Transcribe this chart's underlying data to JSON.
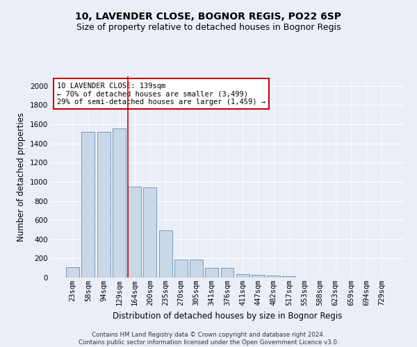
{
  "title1": "10, LAVENDER CLOSE, BOGNOR REGIS, PO22 6SP",
  "title2": "Size of property relative to detached houses in Bognor Regis",
  "xlabel": "Distribution of detached houses by size in Bognor Regis",
  "ylabel": "Number of detached properties",
  "categories": [
    "23sqm",
    "58sqm",
    "94sqm",
    "129sqm",
    "164sqm",
    "200sqm",
    "235sqm",
    "270sqm",
    "305sqm",
    "341sqm",
    "376sqm",
    "411sqm",
    "447sqm",
    "482sqm",
    "517sqm",
    "553sqm",
    "588sqm",
    "623sqm",
    "659sqm",
    "694sqm",
    "729sqm"
  ],
  "values": [
    110,
    1520,
    1520,
    1560,
    950,
    940,
    490,
    185,
    185,
    100,
    100,
    35,
    30,
    20,
    15,
    0,
    0,
    0,
    0,
    0,
    0
  ],
  "bar_color": "#c8d8e8",
  "bar_edge_color": "#7799bb",
  "vline_x": 3.55,
  "vline_color": "#cc0000",
  "annotation_text": "10 LAVENDER CLOSE: 139sqm\n← 70% of detached houses are smaller (3,499)\n29% of semi-detached houses are larger (1,459) →",
  "annotation_box_color": "#ffffff",
  "annotation_box_edge": "#cc0000",
  "ylim": [
    0,
    2100
  ],
  "yticks": [
    0,
    200,
    400,
    600,
    800,
    1000,
    1200,
    1400,
    1600,
    1800,
    2000
  ],
  "footer": "Contains HM Land Registry data © Crown copyright and database right 2024.\nContains public sector information licensed under the Open Government Licence v3.0.",
  "bg_color": "#eaeff7",
  "grid_color": "#ffffff",
  "title_fontsize": 10,
  "subtitle_fontsize": 9,
  "label_fontsize": 8.5,
  "tick_fontsize": 7.5,
  "ann_fontsize": 7.5
}
